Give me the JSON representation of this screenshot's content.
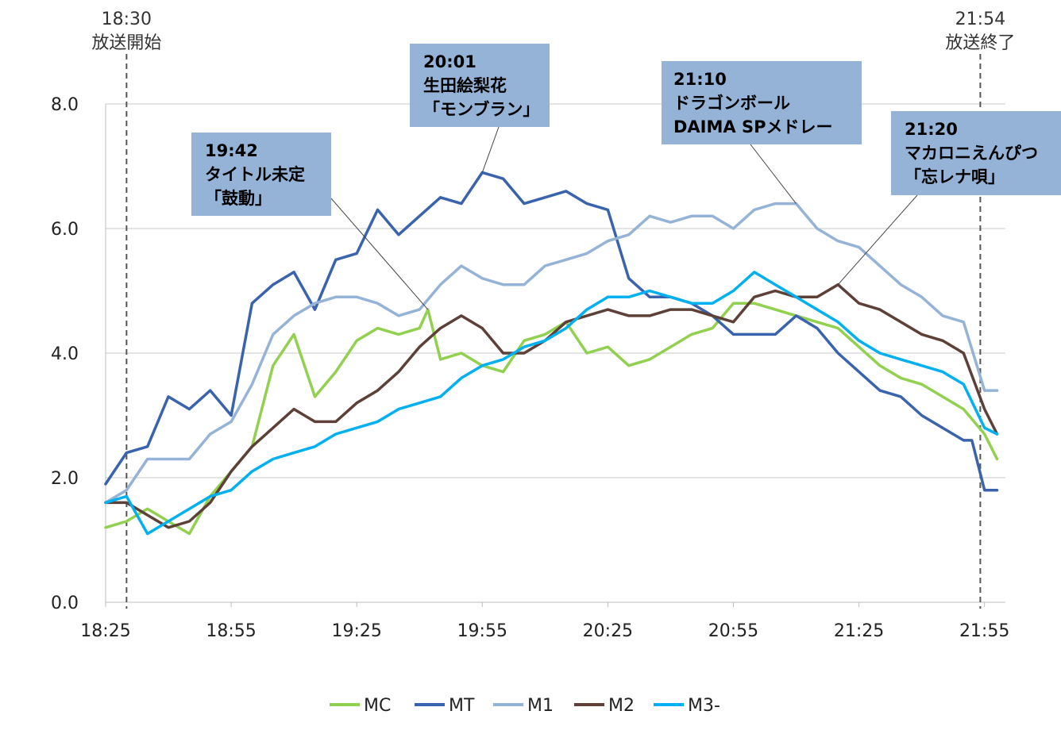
{
  "chart_data": {
    "type": "line",
    "x_tick_labels": [
      "18:25",
      "18:55",
      "19:25",
      "19:55",
      "20:25",
      "20:55",
      "21:25",
      "21:55"
    ],
    "x_range_minutes": [
      1105,
      1320
    ],
    "y_tick_labels": [
      "0.0",
      "2.0",
      "4.0",
      "6.0",
      "8.0"
    ],
    "ylim": [
      0,
      8
    ],
    "grid": "horizontal",
    "legend_position": "bottom",
    "event_markers": [
      {
        "time": "18:30",
        "label": "放送開始",
        "x_minute": 1110
      },
      {
        "time": "21:54",
        "label": "放送終了",
        "x_minute": 1314
      }
    ],
    "annotations": [
      {
        "lines": [
          "19:42",
          "タイトル未定",
          "「鼓動」"
        ]
      },
      {
        "lines": [
          "20:01",
          "生田絵梨花",
          "「モンブラン」"
        ]
      },
      {
        "lines": [
          "21:10",
          "ドラゴンボール",
          "DAIMA SPメドレー"
        ]
      },
      {
        "lines": [
          "21:20",
          "マカロニえんぴつ",
          "「忘レナ唄」"
        ]
      }
    ],
    "series": [
      {
        "name": "MC",
        "color": "#92D050",
        "x": [
          "18:25",
          "18:30",
          "18:35",
          "18:40",
          "18:45",
          "18:50",
          "18:55",
          "19:00",
          "19:05",
          "19:10",
          "19:15",
          "19:20",
          "19:25",
          "19:30",
          "19:35",
          "19:40",
          "19:42",
          "19:45",
          "19:50",
          "19:55",
          "20:00",
          "20:05",
          "20:10",
          "20:15",
          "20:20",
          "20:25",
          "20:30",
          "20:35",
          "20:40",
          "20:45",
          "20:50",
          "20:55",
          "21:00",
          "21:05",
          "21:10",
          "21:15",
          "21:20",
          "21:25",
          "21:30",
          "21:35",
          "21:40",
          "21:45",
          "21:50",
          "21:55",
          "21:58"
        ],
        "values": [
          1.2,
          1.3,
          1.5,
          1.3,
          1.1,
          1.7,
          2.1,
          2.5,
          3.8,
          4.3,
          3.3,
          3.7,
          4.2,
          4.4,
          4.3,
          4.4,
          4.7,
          3.9,
          4.0,
          3.8,
          3.7,
          4.2,
          4.3,
          4.5,
          4.0,
          4.1,
          3.8,
          3.9,
          4.1,
          4.3,
          4.4,
          4.8,
          4.8,
          4.7,
          4.6,
          4.5,
          4.4,
          4.1,
          3.8,
          3.6,
          3.5,
          3.3,
          3.1,
          2.7,
          2.3
        ]
      },
      {
        "name": "MT",
        "color": "#3A63AD",
        "x": [
          "18:25",
          "18:30",
          "18:35",
          "18:40",
          "18:45",
          "18:50",
          "18:55",
          "19:00",
          "19:05",
          "19:10",
          "19:15",
          "19:20",
          "19:25",
          "19:30",
          "19:35",
          "19:40",
          "19:45",
          "19:50",
          "19:55",
          "20:00",
          "20:05",
          "20:10",
          "20:15",
          "20:20",
          "20:25",
          "20:30",
          "20:35",
          "20:40",
          "20:45",
          "20:50",
          "20:55",
          "21:00",
          "21:05",
          "21:10",
          "21:15",
          "21:20",
          "21:25",
          "21:30",
          "21:35",
          "21:40",
          "21:45",
          "21:50",
          "21:52",
          "21:55",
          "21:58"
        ],
        "values": [
          1.9,
          2.4,
          2.5,
          3.3,
          3.1,
          3.4,
          3.0,
          4.8,
          5.1,
          5.3,
          4.7,
          5.5,
          5.6,
          6.3,
          5.9,
          6.2,
          6.5,
          6.4,
          6.9,
          6.8,
          6.4,
          6.5,
          6.6,
          6.4,
          6.3,
          5.2,
          4.9,
          4.9,
          4.8,
          4.6,
          4.3,
          4.3,
          4.3,
          4.6,
          4.4,
          4.0,
          3.7,
          3.4,
          3.3,
          3.0,
          2.8,
          2.6,
          2.6,
          1.8,
          1.8
        ]
      },
      {
        "name": "M1",
        "color": "#95B3D7",
        "x": [
          "18:25",
          "18:30",
          "18:35",
          "18:40",
          "18:45",
          "18:50",
          "18:55",
          "19:00",
          "19:05",
          "19:10",
          "19:15",
          "19:20",
          "19:25",
          "19:30",
          "19:35",
          "19:40",
          "19:45",
          "19:50",
          "19:55",
          "20:00",
          "20:05",
          "20:10",
          "20:15",
          "20:20",
          "20:25",
          "20:30",
          "20:35",
          "20:40",
          "20:45",
          "20:50",
          "20:55",
          "21:00",
          "21:05",
          "21:10",
          "21:15",
          "21:20",
          "21:25",
          "21:30",
          "21:35",
          "21:40",
          "21:45",
          "21:50",
          "21:55",
          "21:58"
        ],
        "values": [
          1.6,
          1.8,
          2.3,
          2.3,
          2.3,
          2.7,
          2.9,
          3.5,
          4.3,
          4.6,
          4.8,
          4.9,
          4.9,
          4.8,
          4.6,
          4.7,
          5.1,
          5.4,
          5.2,
          5.1,
          5.1,
          5.4,
          5.5,
          5.6,
          5.8,
          5.9,
          6.2,
          6.1,
          6.2,
          6.2,
          6.0,
          6.3,
          6.4,
          6.4,
          6.0,
          5.8,
          5.7,
          5.4,
          5.1,
          4.9,
          4.6,
          4.5,
          3.4,
          3.4
        ]
      },
      {
        "name": "M2",
        "color": "#5D4037",
        "x": [
          "18:25",
          "18:30",
          "18:35",
          "18:40",
          "18:45",
          "18:50",
          "18:55",
          "19:00",
          "19:05",
          "19:10",
          "19:15",
          "19:20",
          "19:25",
          "19:30",
          "19:35",
          "19:40",
          "19:45",
          "19:50",
          "19:55",
          "20:00",
          "20:05",
          "20:10",
          "20:15",
          "20:20",
          "20:25",
          "20:30",
          "20:35",
          "20:40",
          "20:45",
          "20:50",
          "20:55",
          "21:00",
          "21:05",
          "21:10",
          "21:15",
          "21:20",
          "21:25",
          "21:30",
          "21:35",
          "21:40",
          "21:45",
          "21:50",
          "21:55",
          "21:58"
        ],
        "values": [
          1.6,
          1.6,
          1.4,
          1.2,
          1.3,
          1.6,
          2.1,
          2.5,
          2.8,
          3.1,
          2.9,
          2.9,
          3.2,
          3.4,
          3.7,
          4.1,
          4.4,
          4.6,
          4.4,
          4.0,
          4.0,
          4.2,
          4.5,
          4.6,
          4.7,
          4.6,
          4.6,
          4.7,
          4.7,
          4.6,
          4.5,
          4.9,
          5.0,
          4.9,
          4.9,
          5.1,
          4.8,
          4.7,
          4.5,
          4.3,
          4.2,
          4.0,
          3.1,
          2.7
        ]
      },
      {
        "name": "M3-",
        "color": "#00B0F0",
        "x": [
          "18:25",
          "18:30",
          "18:35",
          "18:40",
          "18:45",
          "18:50",
          "18:55",
          "19:00",
          "19:05",
          "19:10",
          "19:15",
          "19:20",
          "19:25",
          "19:30",
          "19:35",
          "19:40",
          "19:45",
          "19:50",
          "19:55",
          "20:00",
          "20:05",
          "20:10",
          "20:15",
          "20:20",
          "20:25",
          "20:30",
          "20:35",
          "20:40",
          "20:45",
          "20:50",
          "20:55",
          "21:00",
          "21:05",
          "21:10",
          "21:15",
          "21:20",
          "21:25",
          "21:30",
          "21:35",
          "21:40",
          "21:45",
          "21:50",
          "21:55",
          "21:58"
        ],
        "values": [
          1.6,
          1.7,
          1.1,
          1.3,
          1.5,
          1.7,
          1.8,
          2.1,
          2.3,
          2.4,
          2.5,
          2.7,
          2.8,
          2.9,
          3.1,
          3.2,
          3.3,
          3.6,
          3.8,
          3.9,
          4.1,
          4.2,
          4.4,
          4.7,
          4.9,
          4.9,
          5.0,
          4.9,
          4.8,
          4.8,
          5.0,
          5.3,
          5.1,
          4.9,
          4.7,
          4.5,
          4.2,
          4.0,
          3.9,
          3.8,
          3.7,
          3.5,
          2.8,
          2.7
        ]
      }
    ]
  }
}
